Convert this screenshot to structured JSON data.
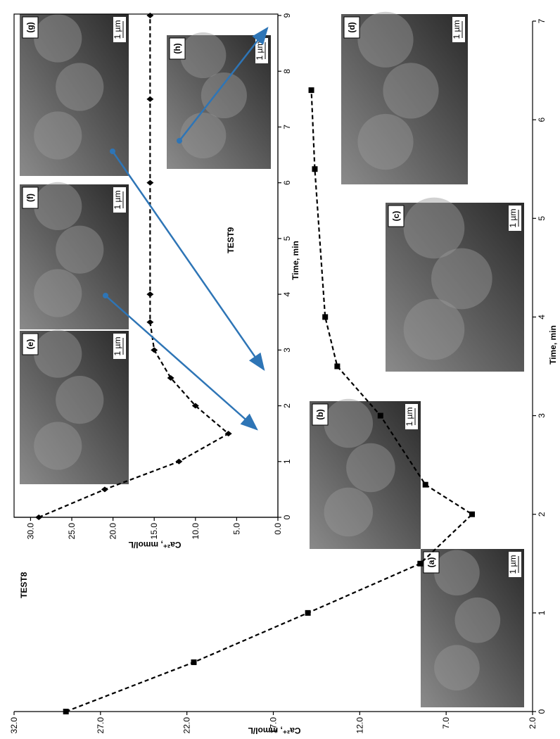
{
  "chart_data": [
    {
      "type": "line",
      "title": "TEST8",
      "marker": "square",
      "color": "#000000",
      "x_label": "Time, min",
      "y_label": "Ca²⁺, mmol/L",
      "x": [
        0,
        0.5,
        1,
        1.5,
        2,
        2.3,
        3,
        3.5,
        4,
        5.5,
        6.3
      ],
      "values": [
        29.0,
        21.6,
        15.0,
        8.5,
        5.5,
        8.2,
        10.8,
        13.3,
        14.0,
        14.6,
        14.8
      ],
      "xlim": [
        0,
        7
      ],
      "xticks": [
        0,
        1,
        2,
        3,
        4,
        5,
        6,
        7
      ],
      "ylim": [
        2,
        32
      ],
      "yticks": [
        {
          "value": 2,
          "label": "2.0"
        },
        {
          "value": 7,
          "label": "7.0"
        },
        {
          "value": 12,
          "label": "12.0"
        },
        {
          "value": 17,
          "label": "17.0"
        },
        {
          "value": 22,
          "label": "22.0"
        },
        {
          "value": 27,
          "label": "27.0"
        },
        {
          "value": 32,
          "label": "32.0"
        }
      ]
    },
    {
      "type": "line",
      "title": "TEST9",
      "marker": "diamond",
      "color": "#000000",
      "x_label": "Time, min",
      "y_label": "Ca²⁺, mmol/L",
      "x": [
        0,
        0.5,
        1,
        1.5,
        2,
        2.5,
        3,
        3.5,
        4,
        6,
        7.5,
        9
      ],
      "values": [
        29.0,
        21.0,
        12.0,
        6.0,
        10.0,
        13.0,
        15.0,
        15.5,
        15.5,
        15.5,
        15.5,
        15.5
      ],
      "xlim": [
        0,
        9
      ],
      "xticks": [
        0,
        1,
        2,
        3,
        4,
        5,
        6,
        7,
        8,
        9
      ],
      "ylim": [
        0,
        32
      ],
      "yticks": [
        {
          "value": 0,
          "label": "0.0"
        },
        {
          "value": 5,
          "label": "5.0"
        },
        {
          "value": 10,
          "label": "10.0"
        },
        {
          "value": 15,
          "label": "15.0"
        },
        {
          "value": 20,
          "label": "20.0"
        },
        {
          "value": 25,
          "label": "25.0"
        },
        {
          "value": 30,
          "label": "30.0"
        }
      ]
    }
  ],
  "micrographs": [
    {
      "label": "(a)",
      "scale": "1 µm"
    },
    {
      "label": "(b)",
      "scale": "1 µm"
    },
    {
      "label": "(c)",
      "scale": "1 µm"
    },
    {
      "label": "(d)",
      "scale": "1 µm"
    },
    {
      "label": "(e)",
      "scale": "1 µm"
    },
    {
      "label": "(f)",
      "scale": "1 µm"
    },
    {
      "label": "(g)",
      "scale": "1 µm"
    },
    {
      "label": "(h)",
      "scale": "1 µm"
    }
  ]
}
